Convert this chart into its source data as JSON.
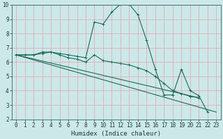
{
  "xlabel": "Humidex (Indice chaleur)",
  "xlim": [
    -0.5,
    23.5
  ],
  "ylim": [
    2,
    10
  ],
  "xticks": [
    0,
    1,
    2,
    3,
    4,
    5,
    6,
    7,
    8,
    9,
    10,
    11,
    12,
    13,
    14,
    15,
    16,
    17,
    18,
    19,
    20,
    21,
    22,
    23
  ],
  "yticks": [
    2,
    3,
    4,
    5,
    6,
    7,
    8,
    9,
    10
  ],
  "background_color": "#cce8e8",
  "grid_color": "#e8a0a8",
  "line_color": "#1a6b5a",
  "series": [
    {
      "x": [
        0,
        1,
        2,
        3,
        4,
        5,
        6,
        7,
        8,
        9,
        10,
        11,
        12,
        13,
        14,
        15,
        16,
        17,
        18,
        19,
        20,
        21,
        22
      ],
      "y": [
        6.5,
        6.5,
        6.5,
        6.7,
        6.7,
        6.6,
        6.5,
        6.4,
        6.3,
        8.8,
        8.65,
        9.5,
        10.05,
        10.05,
        9.3,
        7.5,
        5.5,
        3.7,
        3.7,
        5.5,
        4.0,
        3.65,
        2.5
      ]
    },
    {
      "x": [
        0,
        1,
        2,
        3,
        4,
        5,
        6,
        7,
        8,
        9,
        10,
        11,
        12,
        13,
        14,
        15,
        16,
        17,
        18,
        19,
        20,
        21
      ],
      "y": [
        6.5,
        6.5,
        6.5,
        6.6,
        6.7,
        6.5,
        6.3,
        6.2,
        6.0,
        6.5,
        6.1,
        6.0,
        5.9,
        5.8,
        5.6,
        5.4,
        5.0,
        4.5,
        4.0,
        3.8,
        3.6,
        3.5
      ]
    },
    {
      "x": [
        0,
        21
      ],
      "y": [
        6.5,
        3.5
      ]
    },
    {
      "x": [
        0,
        23
      ],
      "y": [
        6.5,
        2.5
      ]
    }
  ],
  "figsize": [
    3.2,
    2.0
  ],
  "dpi": 100,
  "tick_fontsize": 5.5,
  "xlabel_fontsize": 6.5
}
